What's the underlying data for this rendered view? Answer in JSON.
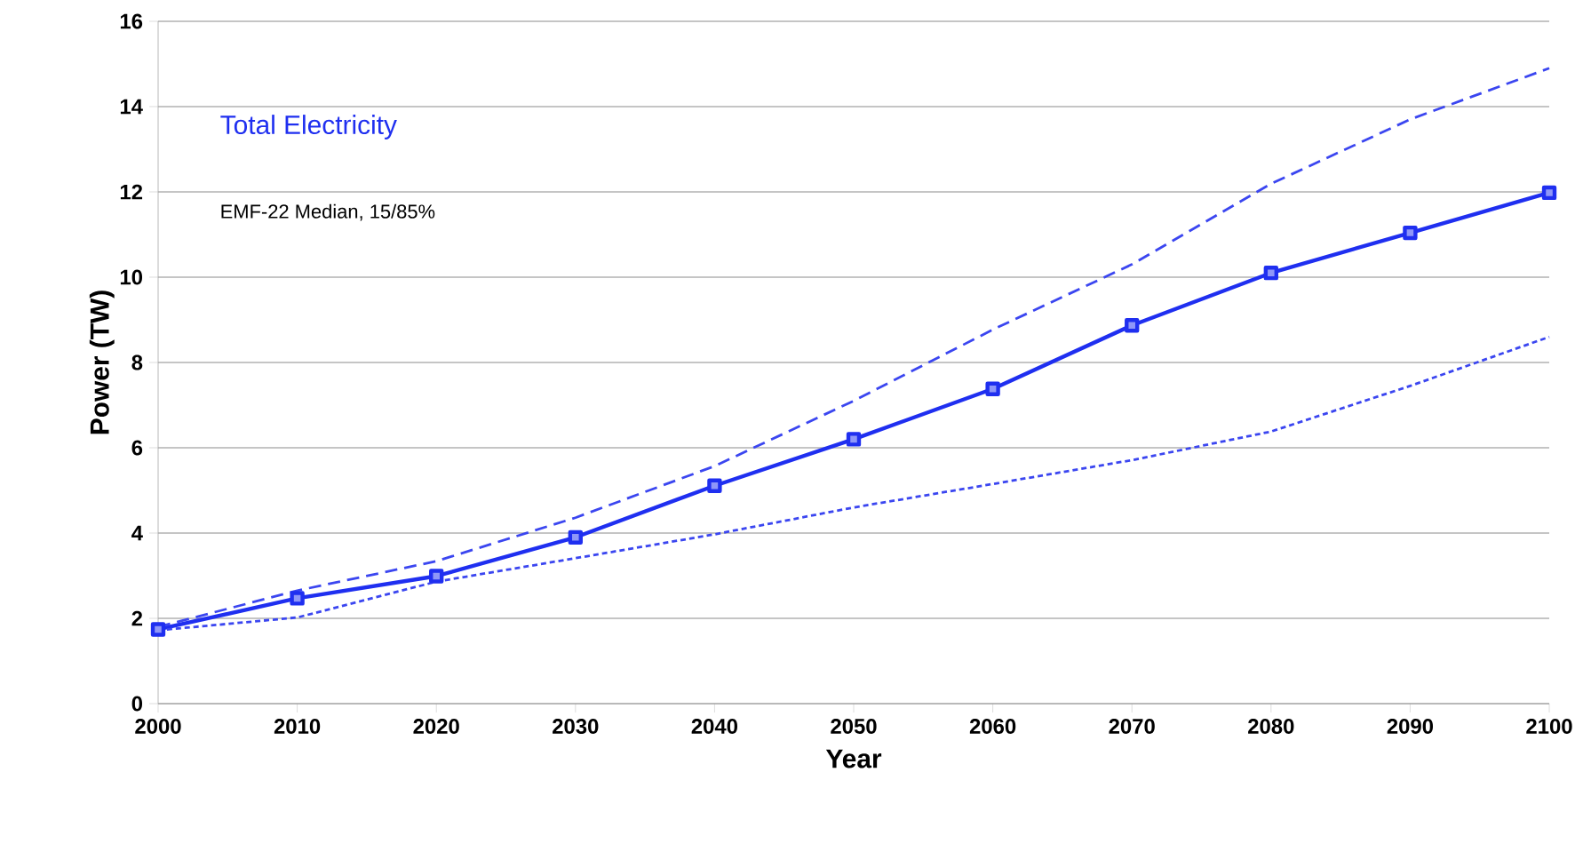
{
  "chart_data": {
    "type": "line",
    "xlabel": "Year",
    "ylabel": "Power (TW)",
    "annotations": [
      "Total Electricity",
      "EMF-22 Median, 15/85%"
    ],
    "x": [
      2000,
      2010,
      2020,
      2030,
      2040,
      2050,
      2060,
      2070,
      2080,
      2090,
      2100
    ],
    "series": [
      {
        "color": "#1f2ff0",
        "values": [
          1.74,
          2.47,
          2.99,
          3.9,
          5.11,
          6.2,
          7.38,
          8.87,
          10.1,
          11.04,
          11.98
        ],
        "marker": "square",
        "line_style": "solid"
      },
      {
        "color": "#3b46f0",
        "values": [
          1.8,
          2.65,
          3.34,
          4.36,
          5.57,
          7.1,
          8.77,
          10.3,
          12.19,
          13.7,
          14.9
        ],
        "marker": "none",
        "line_style": "dashed"
      },
      {
        "color": "#3b46f0",
        "values": [
          1.72,
          2.02,
          2.86,
          3.41,
          3.97,
          4.6,
          5.15,
          5.71,
          6.38,
          7.45,
          8.6
        ],
        "marker": "none",
        "line_style": "dotted"
      }
    ],
    "xlim": [
      2000,
      2100
    ],
    "xticks": [
      2000,
      2010,
      2020,
      2030,
      2040,
      2050,
      2060,
      2070,
      2080,
      2090,
      2100
    ],
    "ylim": [
      0,
      16
    ],
    "yticks": [
      0,
      2,
      4,
      6,
      8,
      10,
      12,
      14,
      16
    ],
    "grid": "y"
  }
}
